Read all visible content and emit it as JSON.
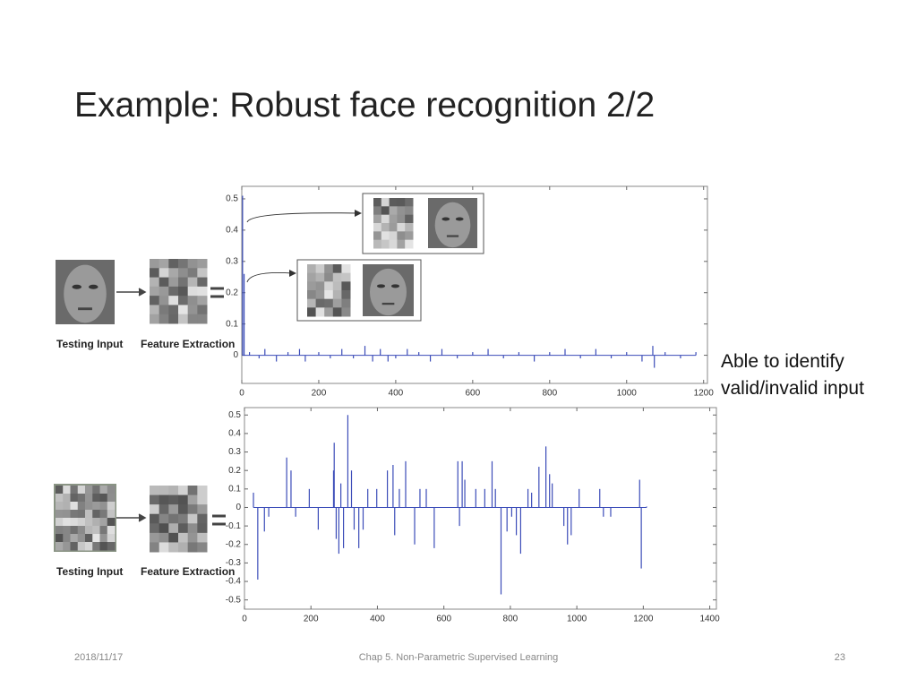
{
  "slide_title": "Example: Robust face recognition 2/2",
  "note": [
    "Able to identify",
    "valid/invalid input"
  ],
  "figure_labels": {
    "top": [
      "Testing Input",
      "Feature Extraction"
    ],
    "bottom": [
      "Testing Input",
      "Feature Extraction"
    ]
  },
  "footer": {
    "date": "2018/11/17",
    "course": "Chap 5. Non-Parametric Supervised Learning",
    "page": "23"
  },
  "chart_data": [
    {
      "type": "stem",
      "color": "#3b4cb8",
      "x": [
        2,
        6,
        20,
        45,
        60,
        90,
        120,
        150,
        165,
        200,
        230,
        260,
        290,
        320,
        340,
        360,
        380,
        400,
        430,
        460,
        490,
        520,
        560,
        600,
        640,
        680,
        720,
        760,
        800,
        840,
        880,
        920,
        960,
        1000,
        1040,
        1068,
        1072,
        1100,
        1140,
        1180
      ],
      "values": [
        0.51,
        0.26,
        0.01,
        -0.01,
        0.02,
        -0.02,
        0.01,
        0.02,
        -0.02,
        0.01,
        -0.01,
        0.02,
        -0.01,
        0.03,
        -0.02,
        0.02,
        -0.02,
        -0.01,
        0.02,
        0.01,
        -0.02,
        0.02,
        -0.01,
        0.01,
        0.02,
        -0.01,
        0.01,
        -0.02,
        0.01,
        0.02,
        -0.01,
        0.02,
        -0.01,
        0.01,
        -0.02,
        0.03,
        -0.04,
        0.01,
        -0.01,
        0.01
      ],
      "xlim": [
        0,
        1210
      ],
      "ylim": [
        -0.09,
        0.54
      ],
      "xticks": [
        0,
        200,
        400,
        600,
        800,
        1000,
        1200
      ],
      "yticks": [
        0,
        0.1,
        0.2,
        0.3,
        0.4,
        0.5
      ]
    },
    {
      "type": "stem",
      "color": "#3b4cb8",
      "x": [
        27,
        40,
        60,
        73,
        127,
        140,
        154,
        195,
        222,
        268,
        270,
        276,
        284,
        290,
        298,
        311,
        322,
        330,
        344,
        357,
        371,
        398,
        430,
        447,
        452,
        466,
        485,
        512,
        528,
        547,
        571,
        642,
        647,
        655,
        663,
        696,
        723,
        745,
        755,
        772,
        790,
        804,
        818,
        831,
        853,
        864,
        886,
        907,
        918,
        926,
        961,
        972,
        983,
        1007,
        1069,
        1080,
        1102,
        1189,
        1194,
        1210
      ],
      "values": [
        0.08,
        -0.39,
        -0.13,
        -0.05,
        0.27,
        0.2,
        -0.05,
        0.1,
        -0.12,
        0.2,
        0.35,
        -0.17,
        -0.25,
        0.13,
        -0.22,
        0.5,
        0.2,
        -0.12,
        -0.22,
        -0.12,
        0.1,
        0.1,
        0.2,
        0.23,
        -0.15,
        0.1,
        0.25,
        -0.2,
        0.1,
        0.1,
        -0.22,
        0.25,
        -0.1,
        0.25,
        0.15,
        0.1,
        0.1,
        0.25,
        0.1,
        -0.47,
        -0.13,
        -0.05,
        -0.15,
        -0.25,
        0.1,
        0.08,
        0.22,
        0.33,
        0.18,
        0.13,
        -0.1,
        -0.2,
        -0.15,
        0.1,
        0.1,
        -0.05,
        -0.05,
        0.15,
        -0.33,
        0.005
      ],
      "xlim": [
        0,
        1420
      ],
      "ylim": [
        -0.55,
        0.54
      ],
      "xticks": [
        0,
        200,
        400,
        600,
        800,
        1000,
        1200,
        1400
      ],
      "yticks": [
        -0.5,
        -0.4,
        -0.3,
        -0.2,
        -0.1,
        0,
        0.1,
        0.2,
        0.3,
        0.4,
        0.5
      ]
    }
  ]
}
